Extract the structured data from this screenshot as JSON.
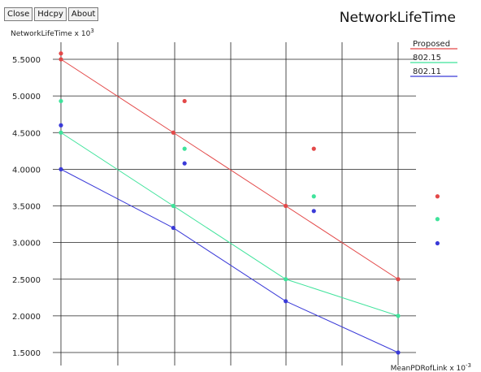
{
  "toolbar": {
    "close_label": "Close",
    "hdcopy_label": "Hdcpy",
    "about_label": "About"
  },
  "chart_data": {
    "type": "line",
    "title": "NetworkLifeTime",
    "ylabel": "NetworkLifeTime x 10",
    "ylabel_exp": "3",
    "xlabel": "MeanPDRofLink x 10",
    "xlabel_exp": "-3",
    "x": [
      1,
      2,
      3,
      4
    ],
    "ylim": [
      1.5,
      5.5
    ],
    "yticks": [
      "1.5000",
      "2.0000",
      "2.5000",
      "3.0000",
      "3.5000",
      "4.0000",
      "4.5000",
      "5.0000",
      "5.5000"
    ],
    "grid": true,
    "legend_position": "top-right",
    "series": [
      {
        "name": "Proposed",
        "color": "#e34848",
        "values": [
          5.5,
          4.5,
          3.5,
          2.5
        ],
        "extra_points": [
          [
            1.0,
            5.58
          ],
          [
            2.1,
            4.93
          ],
          [
            3.25,
            4.28
          ],
          [
            4.35,
            3.63
          ]
        ]
      },
      {
        "name": "802.15",
        "color": "#3fe39b",
        "values": [
          4.5,
          3.5,
          2.5,
          2.0
        ],
        "extra_points": [
          [
            1.0,
            4.93
          ],
          [
            2.1,
            4.28
          ],
          [
            3.25,
            3.63
          ],
          [
            4.35,
            3.32
          ]
        ]
      },
      {
        "name": "802.11",
        "color": "#3a3ad8",
        "values": [
          4.0,
          3.2,
          2.2,
          1.5
        ],
        "extra_points": [
          [
            1.0,
            4.6
          ],
          [
            2.1,
            4.08
          ],
          [
            3.25,
            3.43
          ],
          [
            4.35,
            2.99
          ]
        ]
      }
    ]
  }
}
